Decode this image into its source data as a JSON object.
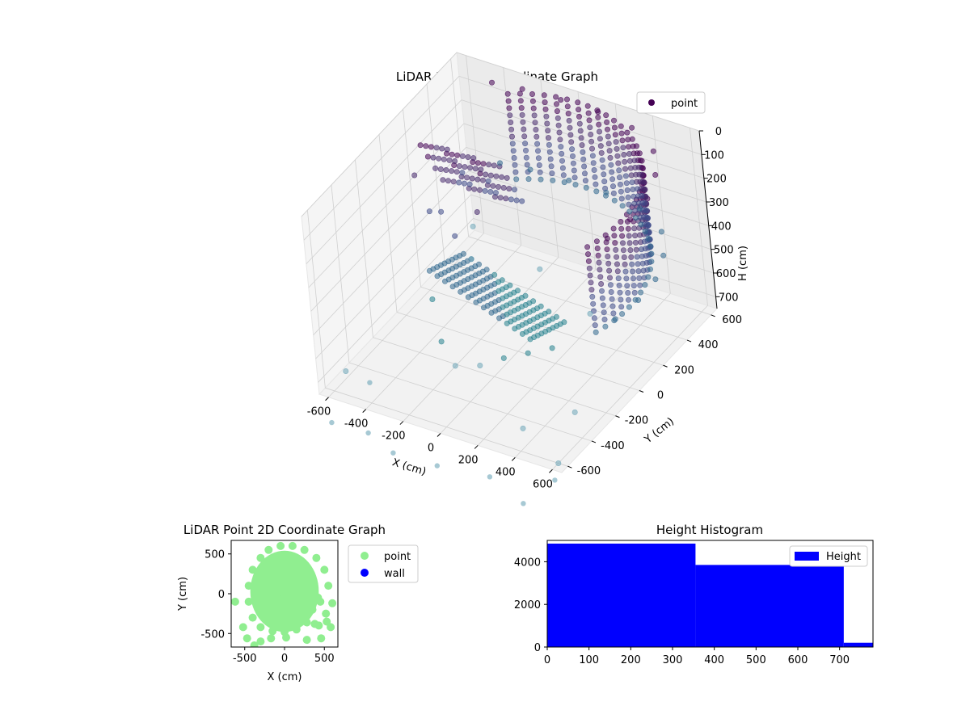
{
  "chart_data": [
    {
      "type": "scatter",
      "title": "LiDAR Point 3D Coordinate Graph",
      "xlabel": "X (cm)",
      "ylabel": "Y (cm)",
      "zlabel": "H (cm)",
      "xticks": [
        -600,
        -400,
        -200,
        0,
        200,
        400,
        600
      ],
      "yticks": [
        -600,
        -400,
        -200,
        0,
        200,
        400,
        600
      ],
      "zticks": [
        0,
        100,
        200,
        300,
        400,
        500,
        600,
        700
      ],
      "xlim": [
        -650,
        650
      ],
      "ylim": [
        -650,
        650
      ],
      "zlim": [
        0,
        750
      ],
      "z_axis_inverted": true,
      "grid": true,
      "legend": {
        "placement": "top-right",
        "entries": [
          "point"
        ]
      },
      "series": [
        {
          "name": "point",
          "color": "#440154",
          "colormap": "viridis",
          "description_points": [
            [
              -450,
              620,
              60
            ],
            [
              -300,
              640,
              60
            ],
            [
              -100,
              650,
              60
            ],
            [
              100,
              650,
              60
            ],
            [
              300,
              620,
              60
            ],
            [
              480,
              520,
              60
            ],
            [
              580,
              380,
              60
            ],
            [
              640,
              220,
              60
            ],
            [
              650,
              60,
              60
            ],
            [
              630,
              -100,
              60
            ],
            [
              -450,
              620,
              400
            ],
            [
              -300,
              640,
              400
            ],
            [
              -100,
              650,
              400
            ],
            [
              100,
              650,
              400
            ],
            [
              300,
              620,
              400
            ],
            [
              480,
              520,
              400
            ],
            [
              580,
              380,
              400
            ],
            [
              640,
              220,
              400
            ],
            [
              650,
              60,
              400
            ],
            [
              630,
              -100,
              400
            ],
            [
              -550,
              100,
              200
            ],
            [
              -450,
              50,
              300
            ],
            [
              -350,
              0,
              250
            ],
            [
              -250,
              -50,
              300
            ],
            [
              -150,
              0,
              200
            ],
            [
              -300,
              -200,
              500
            ],
            [
              -200,
              -300,
              600
            ],
            [
              -100,
              -350,
              650
            ],
            [
              0,
              -300,
              650
            ],
            [
              100,
              -250,
              620
            ],
            [
              200,
              -200,
              600
            ],
            [
              300,
              -150,
              580
            ],
            [
              -600,
              -500,
              720
            ],
            [
              -500,
              400,
              700
            ],
            [
              350,
              -500,
              720
            ],
            [
              500,
              -300,
              720
            ],
            [
              -200,
              500,
              720
            ],
            [
              600,
              -600,
              750
            ],
            [
              -620,
              600,
              700
            ],
            [
              200,
              300,
              700
            ]
          ]
        }
      ]
    },
    {
      "type": "scatter",
      "title": "LiDAR Point 2D Coordinate Graph",
      "xlabel": "X (cm)",
      "ylabel": "Y (cm)",
      "xticks": [
        -500,
        0,
        500
      ],
      "yticks": [
        -500,
        0,
        500
      ],
      "xlim": [
        -670,
        670
      ],
      "ylim": [
        -670,
        670
      ],
      "legend": {
        "placement": "outside-right",
        "entries": [
          "point",
          "wall"
        ]
      },
      "series": [
        {
          "name": "point",
          "color": "#90ee90",
          "points": [
            [
              -300,
              450
            ],
            [
              -200,
              550
            ],
            [
              -50,
              600
            ],
            [
              100,
              600
            ],
            [
              250,
              550
            ],
            [
              400,
              450
            ],
            [
              500,
              300
            ],
            [
              550,
              100
            ],
            [
              -400,
              300
            ],
            [
              -450,
              100
            ],
            [
              -450,
              -100
            ],
            [
              -400,
              -300
            ],
            [
              -300,
              -420
            ],
            [
              -150,
              -470
            ],
            [
              0,
              -480
            ],
            [
              150,
              -450
            ],
            [
              280,
              -360
            ],
            [
              350,
              -200
            ],
            [
              380,
              0
            ],
            [
              300,
              200
            ],
            [
              100,
              300
            ],
            [
              -100,
              300
            ],
            [
              -250,
              150
            ],
            [
              -250,
              -100
            ],
            [
              0,
              0
            ],
            [
              100,
              -150
            ],
            [
              -100,
              -250
            ],
            [
              200,
              50
            ],
            [
              -620,
              -100
            ],
            [
              -520,
              -420
            ],
            [
              -470,
              -560
            ],
            [
              -380,
              -650
            ],
            [
              -170,
              -560
            ],
            [
              20,
              -550
            ],
            [
              280,
              -580
            ],
            [
              430,
              -400
            ],
            [
              530,
              -350
            ],
            [
              580,
              -420
            ],
            [
              600,
              -120
            ],
            [
              520,
              -250
            ],
            [
              450,
              -100
            ],
            [
              420,
              -50
            ],
            [
              380,
              -380
            ],
            [
              460,
              -560
            ],
            [
              -300,
              -600
            ]
          ]
        },
        {
          "name": "wall",
          "color": "#0000ff",
          "points": []
        }
      ]
    },
    {
      "type": "bar",
      "title": "Height Histogram",
      "xticks": [
        0,
        100,
        200,
        300,
        400,
        500,
        600,
        700
      ],
      "yticks": [
        0,
        2000,
        4000
      ],
      "xlim": [
        0,
        780
      ],
      "ylim": [
        0,
        5000
      ],
      "legend": {
        "placement": "top-right",
        "entries": [
          "Height"
        ]
      },
      "series": [
        {
          "name": "Height",
          "color": "#0000ff",
          "bins": [
            {
              "start": 0,
              "end": 355,
              "value": 4850
            },
            {
              "start": 355,
              "end": 710,
              "value": 3850
            },
            {
              "start": 710,
              "end": 780,
              "value": 200
            }
          ]
        }
      ]
    }
  ]
}
